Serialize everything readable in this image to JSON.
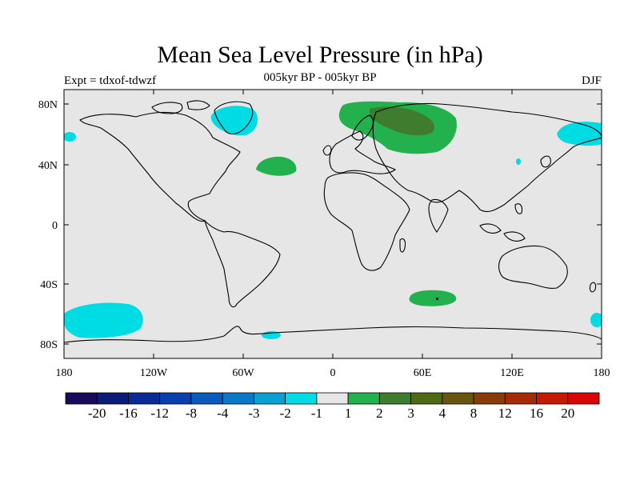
{
  "map": {
    "title": "Mean Sea Level Pressure (in hPa)",
    "subtitle": "005kyr BP - 005kyr BP",
    "left_label": "Expt = tdxof-tdwzf",
    "right_label": "DJF",
    "lon_ticks": [
      "180",
      "120W",
      "60W",
      "0",
      "60E",
      "120E",
      "180"
    ],
    "lat_ticks": [
      "80N",
      "40N",
      "0",
      "40S",
      "80S"
    ],
    "background_color": "#e6e6e6",
    "anomalies": [
      {
        "name": "northern-europe-siberia-positive",
        "level": "1 to 2",
        "color": "#22b14c"
      },
      {
        "name": "central-asia-positive-core",
        "level": "2 to 3",
        "color": "#3f7c2d"
      },
      {
        "name": "north-atlantic-positive",
        "level": "1 to 2",
        "color": "#22b14c"
      },
      {
        "name": "southern-indian-ocean-positive",
        "level": "1 to 2",
        "color": "#22b14c"
      },
      {
        "name": "greenland-negative",
        "level": "-2 to -1",
        "color": "#00dce4"
      },
      {
        "name": "south-pacific-negative",
        "level": "-2 to -1",
        "color": "#00dce4"
      },
      {
        "name": "north-pacific-negative",
        "level": "-2 to -1",
        "color": "#00dce4"
      }
    ]
  },
  "colorbar": {
    "colors": [
      "#1a0a5c",
      "#0c1a78",
      "#0a2a96",
      "#0a3fae",
      "#0a5bbd",
      "#0a78c6",
      "#0aa0d2",
      "#00dce4",
      "#e6e6e6",
      "#22b14c",
      "#3f7c2d",
      "#4f6a14",
      "#6a5510",
      "#8a3c08",
      "#a52a06",
      "#c41a04",
      "#d80808"
    ],
    "labels": [
      "-20",
      "-16",
      "-12",
      "-8",
      "-4",
      "-3",
      "-2",
      "-1",
      "1",
      "2",
      "3",
      "4",
      "8",
      "12",
      "16",
      "20"
    ]
  }
}
